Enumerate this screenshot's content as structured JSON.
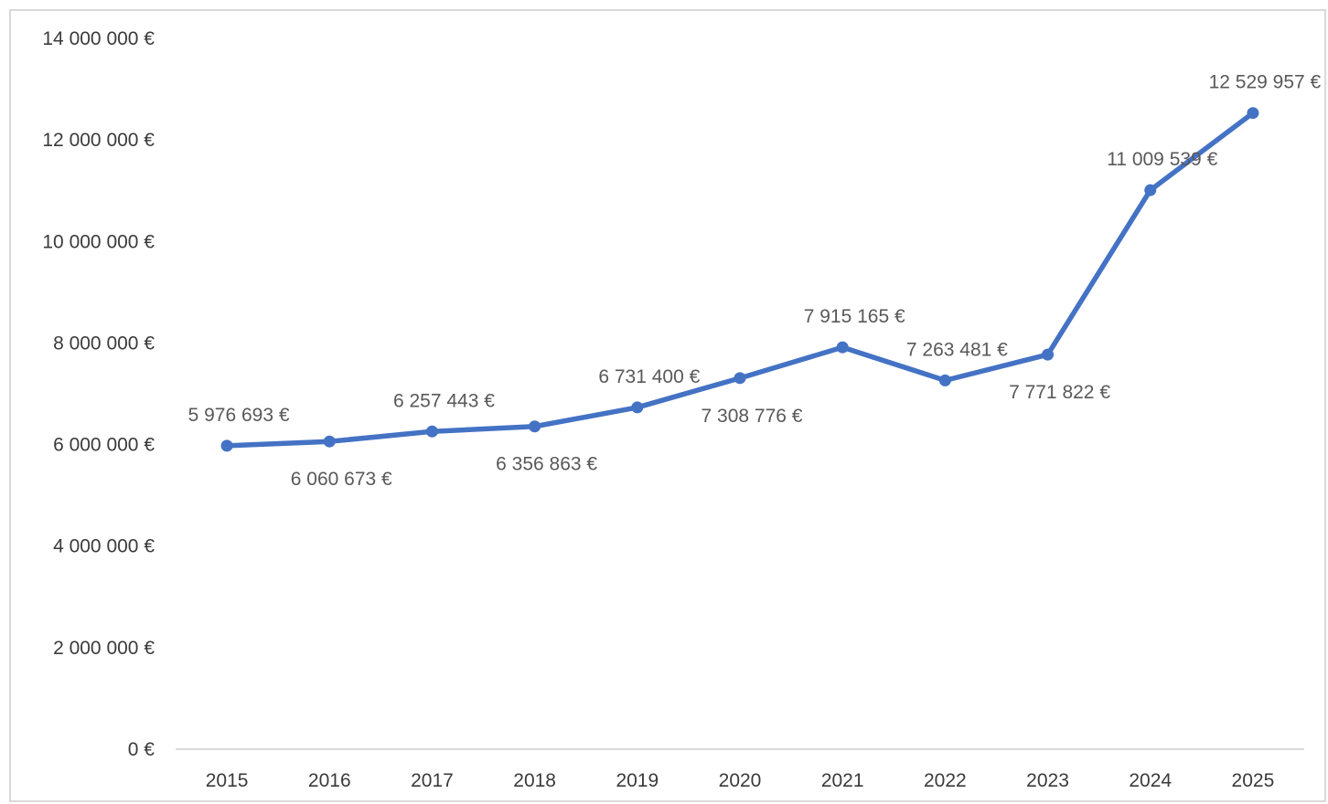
{
  "chart_data": {
    "type": "line",
    "title": "",
    "xlabel": "",
    "ylabel": "",
    "categories": [
      "2015",
      "2016",
      "2017",
      "2018",
      "2019",
      "2020",
      "2021",
      "2022",
      "2023",
      "2024",
      "2025"
    ],
    "series": [
      {
        "color": "#4472c4",
        "values": [
          5976693,
          6060673,
          6257443,
          6356863,
          6731400,
          7308776,
          7915165,
          7263481,
          7771822,
          11009539,
          12529957
        ],
        "labels": [
          "5 976 693 €",
          "6 060 673 €",
          "6 257 443 €",
          "6 356 863 €",
          "6 731 400 €",
          "7 308 776 €",
          "7 915 165 €",
          "7 263 481 €",
          "7 771 822 €",
          "11 009 539 €",
          "12 529 957 €"
        ],
        "label_positions": [
          "above",
          "below",
          "above",
          "below",
          "above",
          "below",
          "above",
          "above",
          "below",
          "above",
          "above"
        ]
      }
    ],
    "ylim": [
      0,
      14000000
    ],
    "yticks": [
      0,
      2000000,
      4000000,
      6000000,
      8000000,
      10000000,
      12000000,
      14000000
    ],
    "ytick_labels": [
      "0 €",
      "2 000 000 €",
      "4 000 000 €",
      "6 000 000 €",
      "8 000 000 €",
      "10 000 000 €",
      "12 000 000 €",
      "14 000 000 €"
    ],
    "grid": false,
    "legend": "none",
    "axis_color": "#d9d9d9"
  }
}
